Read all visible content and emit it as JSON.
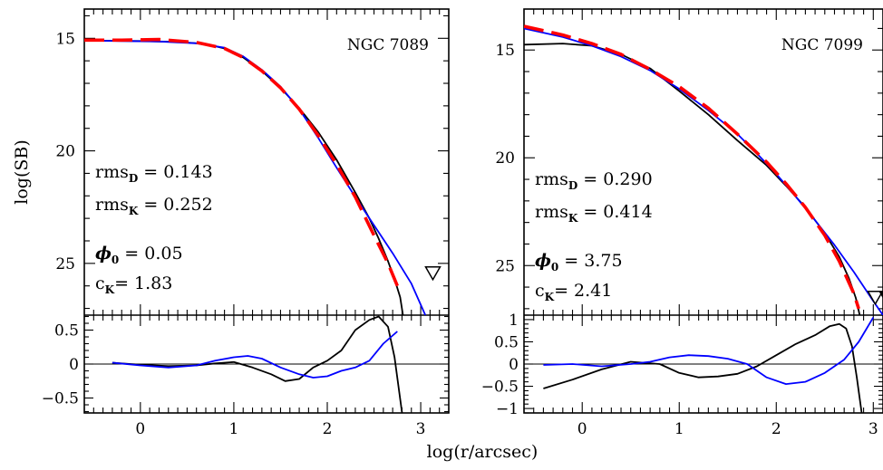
{
  "chart_data": [
    {
      "type": "line",
      "id": "ngc7089",
      "label": "NGC 7089",
      "xlim": [
        -0.6,
        3.3
      ],
      "ylim_main": [
        13.7,
        27.3
      ],
      "y_inverted": true,
      "ylim_resid": [
        -0.72,
        0.72
      ],
      "xticks": [
        0,
        1,
        2,
        3
      ],
      "yticks_main": [
        15,
        20,
        25
      ],
      "yticks_resid": [
        0.5,
        0,
        -0.5
      ],
      "yticklabels_resid": [
        "0.5",
        "0",
        "−0.5"
      ],
      "annotations": {
        "rms_d": "0.143",
        "rms_k": "0.252",
        "phi0": "0.05",
        "ck": "1.83"
      },
      "markers": [
        {
          "kind": "open-triangle-down",
          "x": 3.13,
          "y": 25.4
        }
      ],
      "series": [
        {
          "color": "#000000",
          "style": "solid",
          "x": [
            -0.6,
            0,
            0.4,
            0.7,
            0.9,
            1.1,
            1.3,
            1.5,
            1.7,
            1.9,
            2.1,
            2.3,
            2.45,
            2.55,
            2.65,
            2.72,
            2.78,
            2.81
          ],
          "y": [
            15.1,
            15.12,
            15.16,
            15.25,
            15.45,
            15.85,
            16.45,
            17.2,
            18.1,
            19.15,
            20.4,
            21.85,
            23.0,
            23.9,
            24.9,
            25.7,
            26.5,
            27.3
          ]
        },
        {
          "color": "#0000ff",
          "style": "solid",
          "x": [
            -0.6,
            -0.2,
            0.2,
            0.6,
            0.9,
            1.1,
            1.3,
            1.5,
            1.7,
            1.9,
            2.1,
            2.3,
            2.5,
            2.7,
            2.9,
            3.05
          ],
          "y": [
            15.1,
            15.12,
            15.14,
            15.22,
            15.42,
            15.8,
            16.4,
            17.15,
            18.15,
            19.4,
            20.75,
            22.05,
            23.3,
            24.55,
            25.9,
            27.3
          ]
        },
        {
          "color": "#ff0000",
          "style": "dashed",
          "x": [
            -0.6,
            -0.2,
            0.2,
            0.6,
            0.9,
            1.1,
            1.3,
            1.5,
            1.7,
            1.9,
            2.1,
            2.3,
            2.5,
            2.65,
            2.75
          ],
          "y": [
            15.08,
            15.08,
            15.05,
            15.18,
            15.45,
            15.85,
            16.45,
            17.2,
            18.15,
            19.3,
            20.6,
            22.05,
            23.75,
            25.0,
            26.0
          ]
        }
      ],
      "residuals": [
        {
          "color": "#000000",
          "x": [
            -0.3,
            0,
            0.3,
            0.6,
            0.8,
            1.0,
            1.2,
            1.4,
            1.55,
            1.7,
            1.85,
            2.0,
            2.15,
            2.3,
            2.45,
            2.55,
            2.65,
            2.72,
            2.8
          ],
          "y": [
            0.02,
            -0.01,
            -0.03,
            -0.02,
            0.01,
            0.03,
            -0.05,
            -0.15,
            -0.25,
            -0.22,
            -0.05,
            0.05,
            0.2,
            0.5,
            0.65,
            0.7,
            0.55,
            0.1,
            -0.72
          ]
        },
        {
          "color": "#0000ff",
          "x": [
            -0.3,
            0,
            0.3,
            0.6,
            0.8,
            1.0,
            1.15,
            1.3,
            1.5,
            1.7,
            1.85,
            2.0,
            2.15,
            2.3,
            2.45,
            2.6,
            2.75
          ],
          "y": [
            0.02,
            -0.02,
            -0.05,
            -0.02,
            0.05,
            0.1,
            0.12,
            0.08,
            -0.05,
            -0.15,
            -0.2,
            -0.18,
            -0.1,
            -0.05,
            0.05,
            0.3,
            0.48
          ]
        }
      ]
    },
    {
      "type": "line",
      "id": "ngc7099",
      "label": "NGC 7099",
      "xlim": [
        -0.6,
        3.1
      ],
      "ylim_main": [
        13.1,
        27.3
      ],
      "y_inverted": true,
      "ylim_resid": [
        -1.1,
        1.1
      ],
      "xticks": [
        0,
        1,
        2,
        3
      ],
      "yticks_main": [
        15,
        20,
        25
      ],
      "yticks_resid": [
        1,
        0.5,
        0,
        -0.5,
        -1
      ],
      "yticklabels_resid": [
        "1",
        "0.5",
        "0",
        "−0.5",
        "−1"
      ],
      "annotations": {
        "rms_d": "0.290",
        "rms_k": "0.414",
        "phi0": "3.75",
        "ck": "2.41"
      },
      "markers": [
        {
          "kind": "open-triangle-down",
          "x": 3.02,
          "y": 26.45
        },
        {
          "kind": "filled-triangle-down",
          "x": 3.14,
          "y": 26.45
        }
      ],
      "series": [
        {
          "color": "#000000",
          "style": "solid",
          "x": [
            -0.6,
            -0.2,
            0.1,
            0.4,
            0.7,
            1.0,
            1.3,
            1.6,
            1.9,
            2.1,
            2.3,
            2.5,
            2.65,
            2.75,
            2.82,
            2.86
          ],
          "y": [
            14.75,
            14.7,
            14.8,
            15.2,
            15.85,
            16.9,
            18.0,
            19.2,
            20.35,
            21.3,
            22.3,
            23.5,
            24.6,
            25.6,
            26.5,
            27.3
          ]
        },
        {
          "color": "#0000ff",
          "style": "solid",
          "x": [
            -0.6,
            -0.2,
            0.1,
            0.4,
            0.7,
            1.0,
            1.3,
            1.6,
            1.8,
            2.0,
            2.2,
            2.4,
            2.6,
            2.8,
            3.0,
            3.1
          ],
          "y": [
            14.0,
            14.4,
            14.8,
            15.3,
            15.95,
            16.8,
            17.8,
            18.9,
            19.8,
            20.75,
            21.8,
            22.9,
            24.05,
            25.3,
            26.65,
            27.3
          ]
        },
        {
          "color": "#ff0000",
          "style": "dashed",
          "x": [
            -0.6,
            -0.2,
            0.1,
            0.4,
            0.7,
            1.0,
            1.3,
            1.6,
            1.9,
            2.1,
            2.3,
            2.5,
            2.65,
            2.8,
            2.85
          ],
          "y": [
            13.9,
            14.3,
            14.7,
            15.2,
            15.9,
            16.7,
            17.7,
            18.9,
            20.2,
            21.2,
            22.3,
            23.6,
            24.8,
            26.3,
            27.0
          ]
        }
      ],
      "residuals": [
        {
          "color": "#000000",
          "x": [
            -0.4,
            -0.1,
            0.2,
            0.5,
            0.8,
            1.0,
            1.2,
            1.4,
            1.6,
            1.8,
            2.0,
            2.2,
            2.4,
            2.55,
            2.65,
            2.72,
            2.78,
            2.83,
            2.88
          ],
          "y": [
            -0.55,
            -0.35,
            -0.12,
            0.05,
            0.0,
            -0.2,
            -0.3,
            -0.28,
            -0.22,
            -0.05,
            0.2,
            0.45,
            0.65,
            0.85,
            0.9,
            0.8,
            0.4,
            -0.3,
            -1.1
          ]
        },
        {
          "color": "#0000ff",
          "x": [
            -0.4,
            -0.1,
            0.2,
            0.5,
            0.7,
            0.9,
            1.1,
            1.3,
            1.5,
            1.7,
            1.9,
            2.1,
            2.3,
            2.5,
            2.7,
            2.85,
            3.0
          ],
          "y": [
            -0.02,
            0.0,
            -0.05,
            0.0,
            0.05,
            0.15,
            0.2,
            0.18,
            0.12,
            0.0,
            -0.3,
            -0.45,
            -0.4,
            -0.2,
            0.1,
            0.5,
            1.05
          ]
        }
      ]
    }
  ],
  "axes": {
    "ylabel": "log(SB)",
    "xlabel": "log(r/arcsec)",
    "rms_prefix": "rms",
    "rms_d_sub": "D",
    "rms_k_sub": "K",
    "phi_symbol": "ϕ",
    "phi_sub": "0",
    "c_prefix": "c",
    "c_sub": "K",
    "eq": "="
  }
}
